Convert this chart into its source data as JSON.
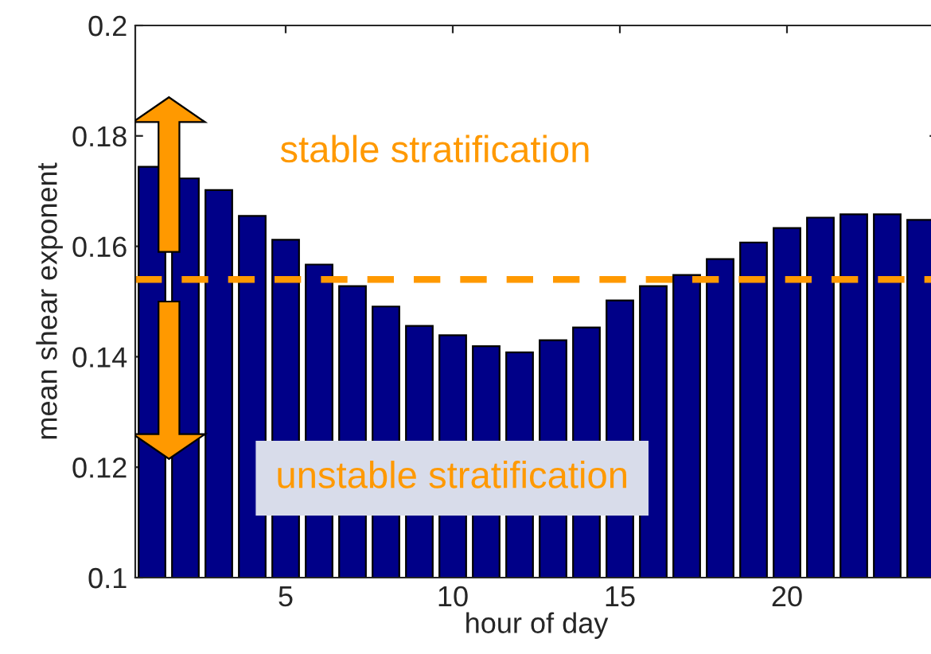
{
  "chart_data": {
    "type": "bar",
    "x": [
      1,
      2,
      3,
      4,
      5,
      6,
      7,
      8,
      9,
      10,
      11,
      12,
      13,
      14,
      15,
      16,
      17,
      18,
      19,
      20,
      21,
      22,
      23,
      24
    ],
    "values": [
      0.1744,
      0.1723,
      0.1702,
      0.1655,
      0.1612,
      0.1567,
      0.1528,
      0.1491,
      0.1456,
      0.1439,
      0.1419,
      0.1408,
      0.143,
      0.1453,
      0.1502,
      0.1528,
      0.1548,
      0.1577,
      0.1607,
      0.1633,
      0.1652,
      0.1658,
      0.1658,
      0.1648
    ],
    "color": "#000088",
    "xlabel": "hour of day",
    "ylabel": "mean shear exponent",
    "xlim": [
      0.5,
      24.5
    ],
    "xticks": [
      5,
      10,
      15,
      20
    ],
    "ylim": [
      0.1,
      0.2
    ],
    "yticks": [
      0.1,
      0.12,
      0.14,
      0.16,
      0.18,
      0.2
    ],
    "ref_lines": [
      {
        "axis": "y",
        "value": 0.154,
        "color": "#ff9900",
        "line_style": "dashed"
      }
    ],
    "annotations": [
      "stable stratification",
      "unstable stratification"
    ],
    "grid": false
  }
}
